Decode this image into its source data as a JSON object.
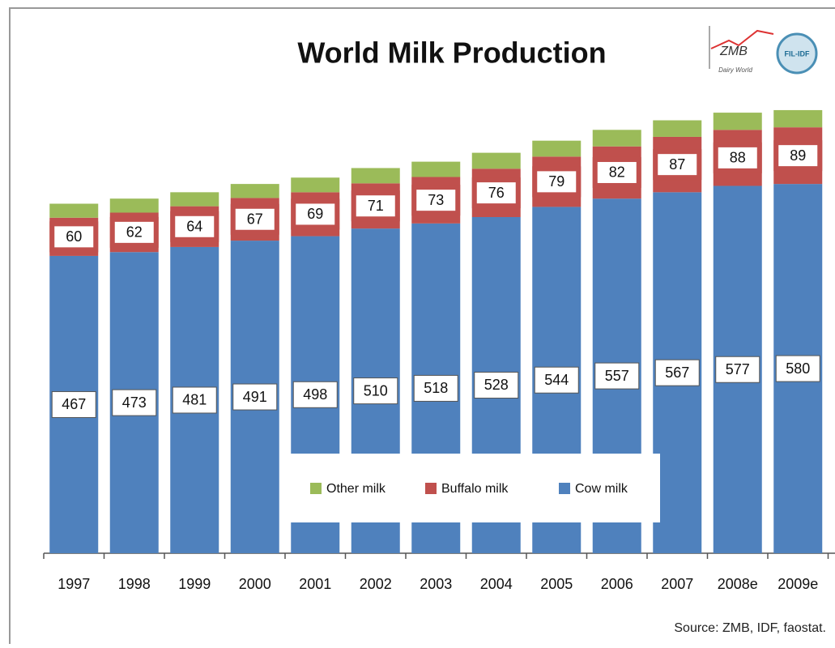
{
  "chart_data": {
    "type": "bar",
    "stacked": true,
    "title": "World Milk Production",
    "categories": [
      "1997",
      "1998",
      "1999",
      "2000",
      "2001",
      "2002",
      "2003",
      "2004",
      "2005",
      "2006",
      "2007",
      "2008e",
      "2009e"
    ],
    "series": [
      {
        "name": "Cow milk",
        "color": "#4f81bd",
        "values": [
          467,
          473,
          481,
          491,
          498,
          510,
          518,
          528,
          544,
          557,
          567,
          577,
          580
        ],
        "labels": true
      },
      {
        "name": "Buffalo milk",
        "color": "#c0504d",
        "values": [
          60,
          62,
          64,
          67,
          69,
          71,
          73,
          76,
          79,
          82,
          87,
          88,
          89
        ],
        "labels": true
      },
      {
        "name": "Other milk",
        "color": "#9bbb59",
        "values": [
          22,
          22,
          22,
          22,
          23,
          24,
          24,
          25,
          25,
          26,
          26,
          27,
          27
        ],
        "labels": false
      }
    ],
    "legend": "bottom-center",
    "source": "Source: ZMB, IDF, faostat.",
    "logos": [
      "ZMB",
      "Dairy World",
      "FIL-IDF"
    ]
  }
}
